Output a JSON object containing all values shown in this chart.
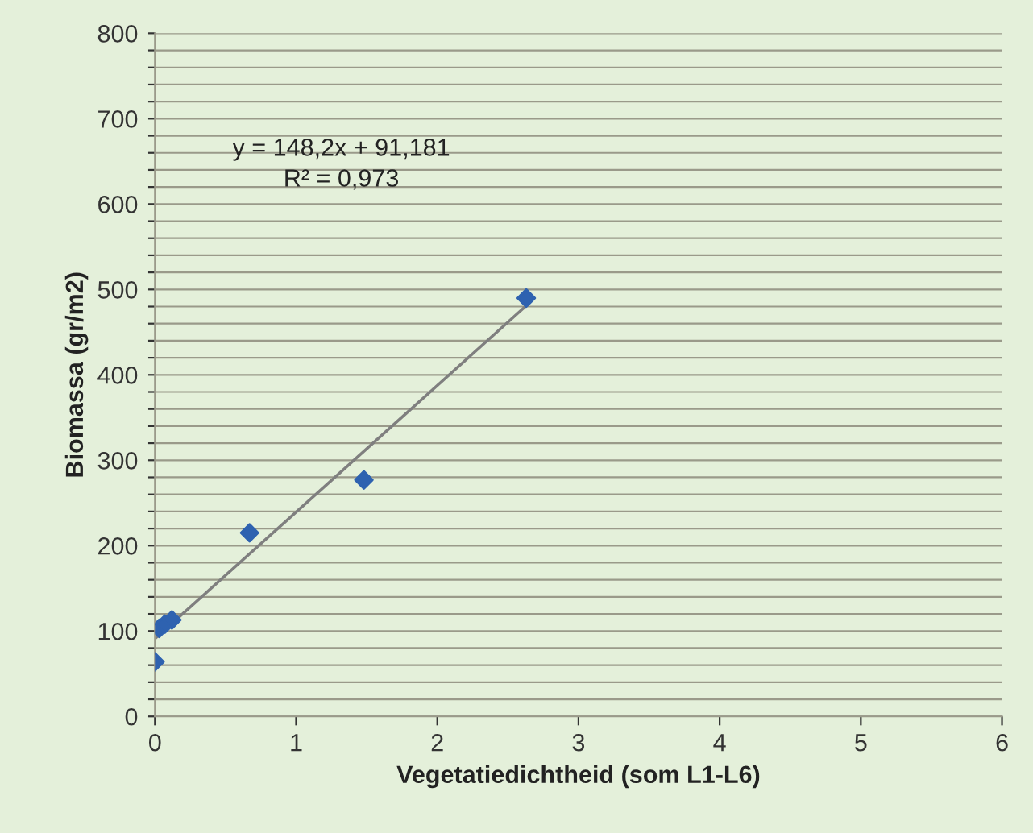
{
  "chart_data": {
    "type": "scatter",
    "xlabel": "Vegetatiedichtheid (som L1-L6)",
    "ylabel": "Biomassa (gr/m2)",
    "annotations": [
      "y = 148,2x + 91,181",
      "R² = 0,973"
    ],
    "series": [
      {
        "color": "#2e62b0",
        "x": [
          0,
          0.03,
          0.07,
          0.12,
          0.67,
          1.48,
          2.63
        ],
        "values": [
          64,
          103,
          108,
          113,
          215,
          277,
          490
        ],
        "marker": "diamond"
      },
      {
        "type": "line",
        "color": "#7f7f7f",
        "x": [
          0,
          2.63
        ],
        "values": [
          91,
          481
        ]
      }
    ],
    "xlim": [
      0,
      6
    ],
    "xticks": [
      0,
      1,
      2,
      3,
      4,
      5,
      6
    ],
    "ylim": [
      0,
      800
    ],
    "yticks": [
      0,
      {
        "value": 20,
        "label": null
      },
      {
        "value": 40,
        "label": null
      },
      {
        "value": 60,
        "label": null
      },
      {
        "value": 80,
        "label": null
      },
      100,
      {
        "value": 120,
        "label": null
      },
      {
        "value": 140,
        "label": null
      },
      {
        "value": 160,
        "label": null
      },
      {
        "value": 180,
        "label": null
      },
      200,
      {
        "value": 220,
        "label": null
      },
      {
        "value": 240,
        "label": null
      },
      {
        "value": 260,
        "label": null
      },
      {
        "value": 280,
        "label": null
      },
      300,
      {
        "value": 320,
        "label": null
      },
      {
        "value": 340,
        "label": null
      },
      {
        "value": 360,
        "label": null
      },
      {
        "value": 380,
        "label": null
      },
      400,
      {
        "value": 420,
        "label": null
      },
      {
        "value": 440,
        "label": null
      },
      {
        "value": 460,
        "label": null
      },
      {
        "value": 480,
        "label": null
      },
      500,
      {
        "value": 520,
        "label": null
      },
      {
        "value": 540,
        "label": null
      },
      {
        "value": 560,
        "label": null
      },
      {
        "value": 580,
        "label": null
      },
      600,
      {
        "value": 620,
        "label": null
      },
      {
        "value": 640,
        "label": null
      },
      {
        "value": 660,
        "label": null
      },
      {
        "value": 680,
        "label": null
      },
      700,
      {
        "value": 720,
        "label": null
      },
      {
        "value": 740,
        "label": null
      },
      {
        "value": 760,
        "label": null
      },
      {
        "value": 780,
        "label": null
      },
      800
    ],
    "grid": "y"
  }
}
